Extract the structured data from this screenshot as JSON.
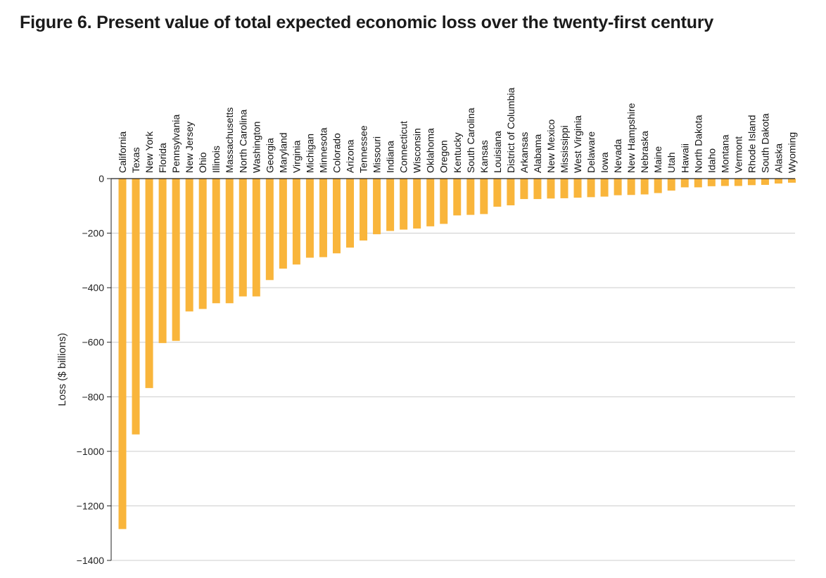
{
  "title": "Figure 6. Present value of total expected economic loss over the twenty-first century",
  "colors": {
    "bar": "#F9B53B",
    "axis": "#222222",
    "grid": "#CCCCCC"
  },
  "chart_data": {
    "type": "bar",
    "orientation": "vertical-down",
    "ylabel": "Loss ($ billions)",
    "xlabel": "",
    "ylim": [
      -1400,
      0
    ],
    "yticks": [
      0,
      -200,
      -400,
      -600,
      -800,
      -1000,
      -1200,
      -1400
    ],
    "grid": true,
    "legend": "none",
    "category_labels_position": "top-rotated",
    "categories": [
      "California",
      "Texas",
      "New York",
      "Florida",
      "Pennsylvania",
      "New Jersey",
      "Ohio",
      "Illinois",
      "Massachusetts",
      "North Carolina",
      "Washington",
      "Georgia",
      "Maryland",
      "Virginia",
      "Michigan",
      "Minnesota",
      "Colorado",
      "Arizona",
      "Tennessee",
      "Missouri",
      "Indiana",
      "Connecticut",
      "Wisconsin",
      "Oklahoma",
      "Oregon",
      "Kentucky",
      "South Carolina",
      "Kansas",
      "Louisiana",
      "District of Columbia",
      "Arkansas",
      "Alabama",
      "New Mexico",
      "Mississippi",
      "West Virginia",
      "Delaware",
      "Iowa",
      "Nevada",
      "New Hampshire",
      "Nebraska",
      "Maine",
      "Utah",
      "Hawaii",
      "North Dakota",
      "Idaho",
      "Montana",
      "Vermont",
      "Rhode Island",
      "South Dakota",
      "Alaska",
      "Wyoming"
    ],
    "values": [
      -1285,
      -938,
      -768,
      -603,
      -595,
      -487,
      -478,
      -457,
      -457,
      -432,
      -432,
      -372,
      -330,
      -315,
      -290,
      -288,
      -274,
      -253,
      -227,
      -204,
      -192,
      -187,
      -183,
      -175,
      -166,
      -135,
      -133,
      -130,
      -103,
      -98,
      -75,
      -75,
      -73,
      -72,
      -70,
      -68,
      -66,
      -61,
      -60,
      -58,
      -53,
      -44,
      -32,
      -32,
      -28,
      -27,
      -27,
      -24,
      -23,
      -18,
      -15
    ]
  }
}
